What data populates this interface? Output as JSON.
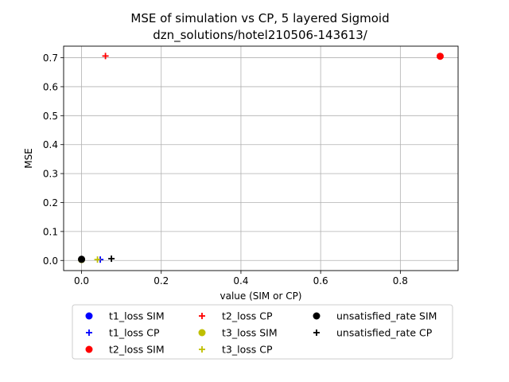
{
  "chart_data": {
    "type": "scatter",
    "title": "MSE of simulation vs CP, 5 layered Sigmoid",
    "subtitle": "dzn_solutions/hotel210506-143613/",
    "xlabel": "value (SIM or CP)",
    "ylabel": "MSE",
    "xlim": [
      -0.045,
      0.945
    ],
    "ylim": [
      -0.035,
      0.74
    ],
    "xticks": [
      0.0,
      0.2,
      0.4,
      0.6,
      0.8
    ],
    "xtick_labels": [
      "0.0",
      "0.2",
      "0.4",
      "0.6",
      "0.8"
    ],
    "yticks": [
      0.0,
      0.1,
      0.2,
      0.3,
      0.4,
      0.5,
      0.6,
      0.7
    ],
    "ytick_labels": [
      "0.0",
      "0.1",
      "0.2",
      "0.3",
      "0.4",
      "0.5",
      "0.6",
      "0.7"
    ],
    "grid": true,
    "legend_position": "below",
    "series": [
      {
        "name": "t1_loss SIM",
        "marker": "circle",
        "color": "#0000ff",
        "points": [
          [
            0.0,
            0.003
          ]
        ]
      },
      {
        "name": "t1_loss CP",
        "marker": "plus",
        "color": "#0000ff",
        "points": [
          [
            0.047,
            0.003
          ]
        ]
      },
      {
        "name": "t2_loss SIM",
        "marker": "circle",
        "color": "#ff0000",
        "points": [
          [
            0.9,
            0.705
          ]
        ]
      },
      {
        "name": "t2_loss CP",
        "marker": "plus",
        "color": "#ff0000",
        "points": [
          [
            0.06,
            0.706
          ]
        ]
      },
      {
        "name": "t3_loss SIM",
        "marker": "circle",
        "color": "#bfbf00",
        "points": [
          [
            0.0,
            0.003
          ]
        ]
      },
      {
        "name": "t3_loss CP",
        "marker": "plus",
        "color": "#bfbf00",
        "points": [
          [
            0.04,
            0.003
          ]
        ]
      },
      {
        "name": "unsatisfied_rate SIM",
        "marker": "circle",
        "color": "#000000",
        "points": [
          [
            0.0,
            0.004
          ]
        ]
      },
      {
        "name": "unsatisfied_rate CP",
        "marker": "plus",
        "color": "#000000",
        "points": [
          [
            0.075,
            0.006
          ]
        ]
      }
    ]
  }
}
